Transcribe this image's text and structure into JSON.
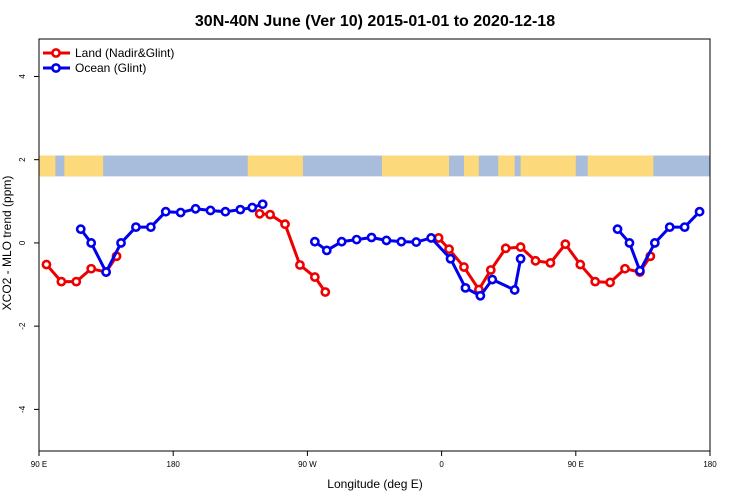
{
  "chart_data": {
    "type": "line",
    "title": "30N-40N June (Ver 10)   2015-01-01 to 2020-12-18",
    "xlabel": "Longitude (deg E)",
    "ylabel": "XCO2 - MLO trend (ppm)",
    "xlim": [
      90,
      540
    ],
    "ylim": [
      -5,
      4.9
    ],
    "x_ticks": [
      {
        "value": 90,
        "label": "90 E"
      },
      {
        "value": 180,
        "label": "180"
      },
      {
        "value": 270,
        "label": "90 W"
      },
      {
        "value": 360,
        "label": "0"
      },
      {
        "value": 450,
        "label": "90 E"
      },
      {
        "value": 540,
        "label": "180"
      }
    ],
    "y_ticks": [
      {
        "value": -4,
        "label": "-4"
      },
      {
        "value": -2,
        "label": "-2"
      },
      {
        "value": 0,
        "label": "0"
      },
      {
        "value": 2,
        "label": "2"
      },
      {
        "value": 4,
        "label": "4"
      }
    ],
    "map_strip": {
      "ymin": 1.6,
      "ymax": 2.1,
      "ocean_color": "#a8bddb",
      "land_color": "#fcd97a",
      "land_segments": [
        [
          90,
          101
        ],
        [
          107,
          133
        ],
        [
          230,
          267
        ],
        [
          320,
          365
        ],
        [
          375,
          385
        ],
        [
          398,
          409
        ],
        [
          413,
          450
        ],
        [
          458,
          502
        ]
      ]
    },
    "series": [
      {
        "name": "Land (Nadir&Glint)",
        "color": "#ee0000",
        "segments": [
          [
            [
              95,
              -0.52
            ],
            [
              105,
              -0.93
            ],
            [
              115,
              -0.93
            ],
            [
              125,
              -0.62
            ],
            [
              135,
              -0.7
            ],
            [
              142,
              -0.32
            ]
          ],
          [
            [
              238,
              0.7
            ],
            [
              245,
              0.68
            ],
            [
              255,
              0.45
            ],
            [
              265,
              -0.53
            ],
            [
              275,
              -0.82
            ],
            [
              282,
              -1.18
            ]
          ],
          [
            [
              358,
              0.12
            ],
            [
              365,
              -0.15
            ],
            [
              375,
              -0.58
            ],
            [
              385,
              -1.12
            ],
            [
              393,
              -0.65
            ],
            [
              403,
              -0.13
            ],
            [
              413,
              -0.1
            ],
            [
              423,
              -0.43
            ],
            [
              433,
              -0.48
            ],
            [
              443,
              -0.03
            ],
            [
              453,
              -0.52
            ],
            [
              463,
              -0.93
            ],
            [
              473,
              -0.95
            ],
            [
              483,
              -0.62
            ],
            [
              493,
              -0.7
            ],
            [
              500,
              -0.32
            ]
          ]
        ]
      },
      {
        "name": "Ocean (Glint)",
        "color": "#0000ee",
        "segments": [
          [
            [
              118,
              0.33
            ],
            [
              125,
              0.0
            ],
            [
              135,
              -0.7
            ],
            [
              145,
              0.0
            ],
            [
              155,
              0.38
            ],
            [
              165,
              0.38
            ],
            [
              175,
              0.75
            ],
            [
              185,
              0.73
            ],
            [
              195,
              0.82
            ],
            [
              205,
              0.78
            ],
            [
              215,
              0.75
            ],
            [
              225,
              0.8
            ],
            [
              233,
              0.85
            ],
            [
              240,
              0.93
            ]
          ],
          [
            [
              275,
              0.03
            ],
            [
              283,
              -0.18
            ],
            [
              293,
              0.03
            ],
            [
              303,
              0.08
            ],
            [
              313,
              0.13
            ],
            [
              323,
              0.06
            ],
            [
              333,
              0.03
            ],
            [
              343,
              0.02
            ],
            [
              353,
              0.12
            ],
            [
              366,
              -0.38
            ],
            [
              376,
              -1.08
            ],
            [
              386,
              -1.27
            ],
            [
              394,
              -0.88
            ],
            [
              409,
              -1.13
            ],
            [
              413,
              -0.38
            ]
          ],
          [
            [
              478,
              0.33
            ],
            [
              486,
              0.0
            ],
            [
              493,
              -0.67
            ],
            [
              503,
              0.0
            ],
            [
              513,
              0.38
            ],
            [
              523,
              0.38
            ],
            [
              533,
              0.75
            ]
          ]
        ]
      }
    ],
    "legend": {
      "position": "top-left",
      "entries": [
        "Land (Nadir&Glint)",
        "Ocean (Glint)"
      ]
    }
  }
}
